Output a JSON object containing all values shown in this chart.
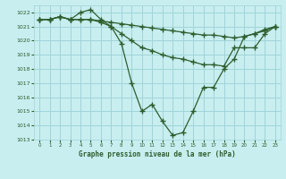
{
  "title": "Graphe pression niveau de la mer (hPa)",
  "background_color": "#c8eef0",
  "grid_color": "#a0d4d8",
  "line_color": "#2d5e2d",
  "marker_color": "#2d5e2d",
  "ylim": [
    1013,
    1022.5
  ],
  "xlim": [
    -0.5,
    23.5
  ],
  "yticks": [
    1013,
    1014,
    1015,
    1016,
    1017,
    1018,
    1019,
    1020,
    1021,
    1022
  ],
  "xticks": [
    0,
    1,
    2,
    3,
    4,
    5,
    6,
    7,
    8,
    9,
    10,
    11,
    12,
    13,
    14,
    15,
    16,
    17,
    18,
    19,
    20,
    21,
    22,
    23
  ],
  "series": [
    {
      "x": [
        0,
        1,
        2,
        3,
        4,
        5,
        6,
        7,
        8,
        9,
        10,
        11,
        12,
        13,
        14,
        15,
        16,
        17,
        18,
        19,
        20,
        21,
        22,
        23
      ],
      "y": [
        1021.5,
        1021.5,
        1021.7,
        1021.5,
        1021.5,
        1021.5,
        1021.4,
        1021.3,
        1021.2,
        1021.1,
        1021.0,
        1020.9,
        1020.8,
        1020.7,
        1020.6,
        1020.5,
        1020.4,
        1020.4,
        1020.3,
        1020.2,
        1020.3,
        1020.5,
        1020.7,
        1021.0
      ]
    },
    {
      "x": [
        0,
        1,
        2,
        3,
        4,
        5,
        6,
        7,
        8,
        9,
        10,
        11,
        12,
        13,
        14,
        15,
        16,
        17,
        18,
        19,
        20,
        21,
        22,
        23
      ],
      "y": [
        1021.5,
        1021.5,
        1021.7,
        1021.5,
        1021.5,
        1021.5,
        1021.3,
        1021.0,
        1020.5,
        1020.0,
        1019.5,
        1019.3,
        1019.0,
        1018.8,
        1018.7,
        1018.5,
        1018.3,
        1018.3,
        1018.2,
        1019.5,
        1019.5,
        1019.5,
        1020.5,
        1021.0
      ]
    },
    {
      "x": [
        0,
        1,
        2,
        3,
        4,
        5,
        6,
        7,
        8,
        9,
        10,
        11,
        12,
        13,
        14,
        15,
        16,
        17,
        18,
        19,
        20,
        21,
        22,
        23
      ],
      "y": [
        1021.5,
        1021.5,
        1021.7,
        1021.5,
        1022.0,
        1022.2,
        1021.5,
        1021.0,
        1019.8,
        1017.0,
        1015.0,
        1015.5,
        1014.3,
        1013.3,
        1013.5,
        1015.0,
        1016.7,
        1016.7,
        1018.0,
        1018.7,
        1020.3,
        1020.5,
        1020.8,
        1021.0
      ]
    }
  ]
}
